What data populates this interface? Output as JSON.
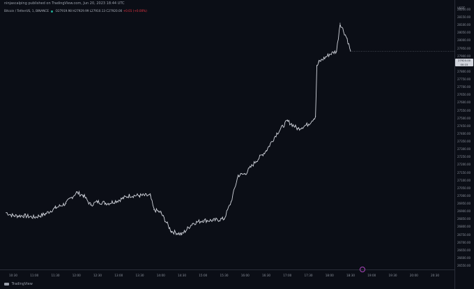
{
  "header": {
    "publisher_line": "ninjascalping published on TradingView.com, Jun 20, 2023 18:44 UTC"
  },
  "legend": {
    "symbol": "Bitcoin / TetherUS, 1, BINANCE",
    "ohlc": "O27919.98 H27929.99 L27910.13 C27920.00",
    "change": "+0.01 (+0.00%)"
  },
  "price_axis": {
    "unit": "USDT",
    "last_price": "27920.00",
    "last_price_countdown": "00:15",
    "ticks": [
      "28200.00",
      "28150.00",
      "28100.00",
      "28050.00",
      "28000.00",
      "27950.00",
      "27900.00",
      "27850.00",
      "27800.00",
      "27750.00",
      "27700.00",
      "27650.00",
      "27600.00",
      "27550.00",
      "27500.00",
      "27450.00",
      "27400.00",
      "27350.00",
      "27300.00",
      "27250.00",
      "27200.00",
      "27150.00",
      "27100.00",
      "27050.00",
      "27000.00",
      "26950.00",
      "26900.00",
      "26850.00",
      "26800.00",
      "26750.00",
      "26700.00",
      "26650.00",
      "26600.00",
      "26550.00"
    ]
  },
  "time_axis": {
    "ticks": [
      "10:30",
      "11:00",
      "11:30",
      "12:00",
      "12:30",
      "13:00",
      "13:30",
      "14:00",
      "14:30",
      "15:00",
      "15:30",
      "16:00",
      "16:30",
      "17:00",
      "17:30",
      "18:00",
      "18:30",
      "19:00",
      "19:30",
      "20:00",
      "20:30"
    ]
  },
  "footer": {
    "brand": "TradingView"
  },
  "colors": {
    "candle": "#d1d4dc",
    "background": "#0b0e16",
    "event": "#ab47bc"
  },
  "chart_data": {
    "type": "line",
    "x": [
      "10:20",
      "10:30",
      "10:45",
      "11:00",
      "11:15",
      "11:30",
      "11:45",
      "12:00",
      "12:10",
      "12:20",
      "12:30",
      "12:45",
      "13:00",
      "13:15",
      "13:30",
      "13:45",
      "13:50",
      "14:00",
      "14:15",
      "14:30",
      "14:45",
      "15:00",
      "15:15",
      "15:30",
      "15:40",
      "15:50",
      "16:00",
      "16:15",
      "16:30",
      "16:45",
      "17:00",
      "17:15",
      "17:30",
      "17:40",
      "17:42",
      "17:45",
      "18:00",
      "18:10",
      "18:15",
      "18:25",
      "18:30"
    ],
    "values": [
      26880,
      26860,
      26860,
      26850,
      26870,
      26910,
      26940,
      27010,
      26990,
      26930,
      26950,
      26940,
      26960,
      26990,
      26990,
      26990,
      26900,
      26880,
      26760,
      26740,
      26810,
      26830,
      26830,
      26840,
      26950,
      27120,
      27130,
      27210,
      27280,
      27390,
      27470,
      27420,
      27450,
      27500,
      27820,
      27850,
      27900,
      27920,
      28100,
      28000,
      27920
    ],
    "ylim": [
      26550,
      28200
    ],
    "grid": false,
    "legend": "none"
  }
}
